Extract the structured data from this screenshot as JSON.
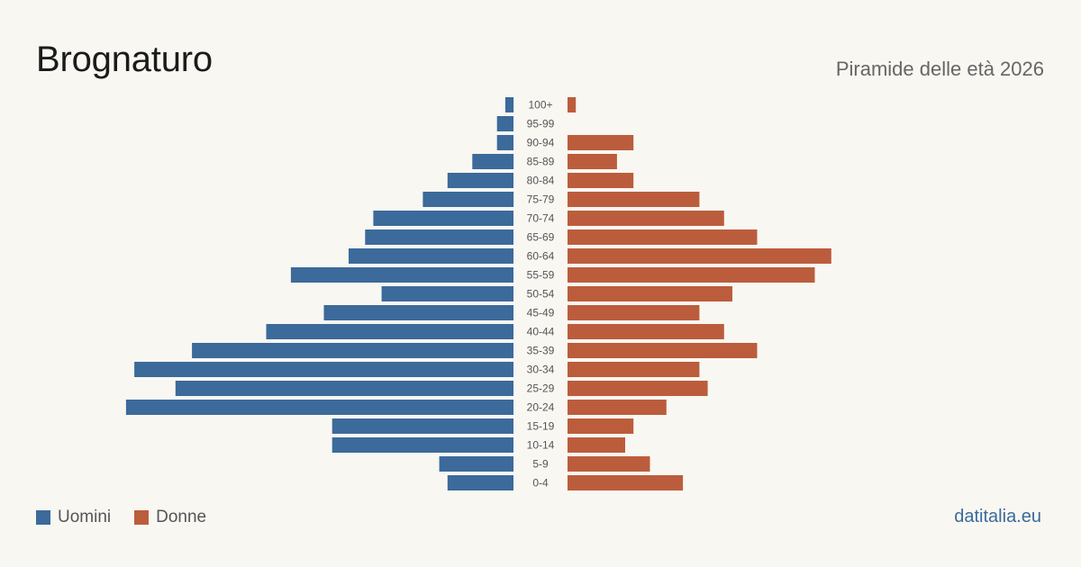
{
  "header": {
    "title": "Brognaturo",
    "subtitle": "Piramide delle età 2026"
  },
  "legend": {
    "men_label": "Uomini",
    "women_label": "Donne"
  },
  "colors": {
    "men": "#3b6a9b",
    "women": "#bb5d3c",
    "background": "#f9f7f2"
  },
  "source": "datitalia.eu",
  "chart_data": {
    "type": "bar",
    "orientation": "horizontal-pyramid",
    "categories": [
      "100+",
      "95-99",
      "90-94",
      "85-89",
      "80-84",
      "75-79",
      "70-74",
      "65-69",
      "60-64",
      "55-59",
      "50-54",
      "45-49",
      "40-44",
      "35-39",
      "30-34",
      "25-29",
      "20-24",
      "15-19",
      "10-14",
      "5-9",
      "0-4"
    ],
    "series": [
      {
        "name": "Uomini",
        "values": [
          1,
          2,
          2,
          5,
          8,
          11,
          17,
          18,
          20,
          27,
          16,
          23,
          30,
          39,
          46,
          41,
          47,
          22,
          22,
          9,
          8
        ]
      },
      {
        "name": "Donne",
        "values": [
          1,
          0,
          8,
          6,
          8,
          16,
          19,
          23,
          32,
          30,
          20,
          16,
          19,
          23,
          16,
          17,
          12,
          8,
          7,
          10,
          14
        ]
      }
    ],
    "legend_position": "bottom-left"
  }
}
